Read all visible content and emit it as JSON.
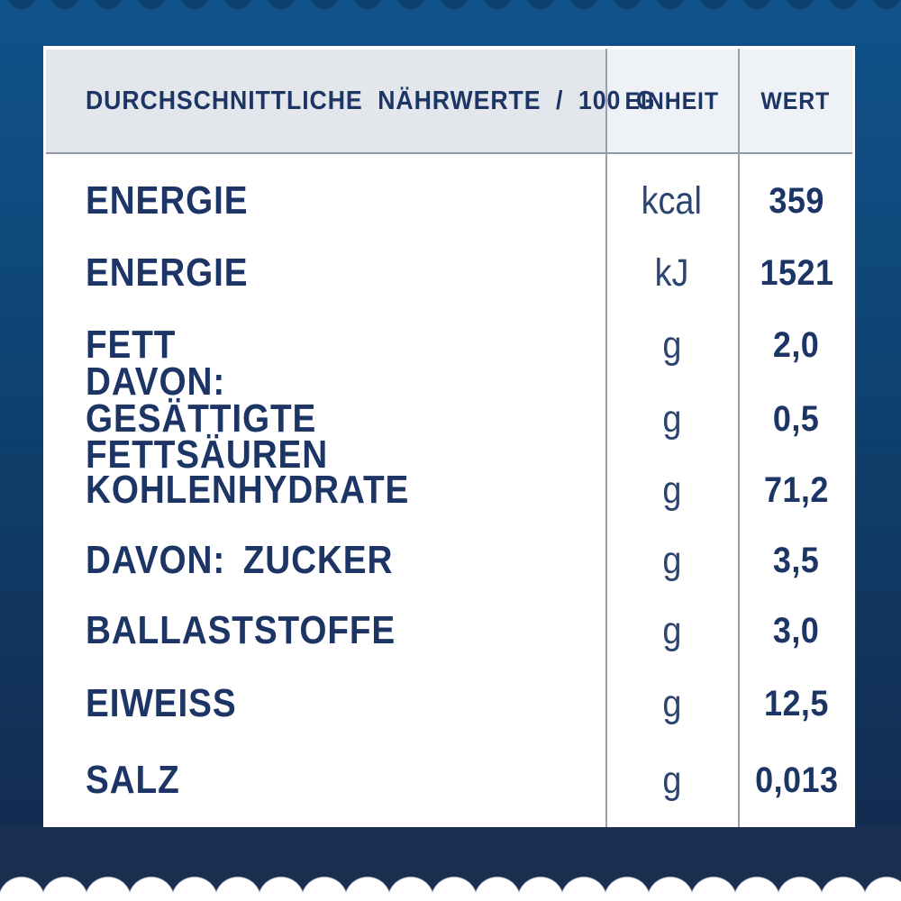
{
  "table": {
    "header": {
      "main": "DURCHSCHNITTLICHE NÄHRWERTE / 100 G",
      "unit": "EINHEIT",
      "value": "WERT"
    },
    "rows": [
      {
        "label": "ENERGIE",
        "unit": "kcal",
        "value": "359"
      },
      {
        "label": "ENERGIE",
        "unit": "kJ",
        "value": "1521"
      },
      {
        "label": "FETT",
        "unit": "g",
        "value": "2,0"
      },
      {
        "label": "DAVON: GESÄTTIGTE FETTSÄUREN",
        "unit": "g",
        "value": "0,5"
      },
      {
        "label": "KOHLENHYDRATE",
        "unit": "g",
        "value": "71,2"
      },
      {
        "label": "DAVON: ZUCKER",
        "unit": "g",
        "value": "3,5"
      },
      {
        "label": "BALLASTSTOFFE",
        "unit": "g",
        "value": "3,0"
      },
      {
        "label": "EIWEISS",
        "unit": "g",
        "value": "12,5"
      },
      {
        "label": "SALZ",
        "unit": "g",
        "value": "0,013"
      }
    ]
  },
  "colors": {
    "background_top": "#11528b",
    "background_bottom": "#13294b",
    "card": "#ffffff",
    "header_cell_main": "#e3e7ec",
    "header_cell_light": "#eef1f5",
    "text_navy": "#1d3565",
    "separator": "#98a0ab",
    "bottom_band": "#1a2e4f"
  }
}
